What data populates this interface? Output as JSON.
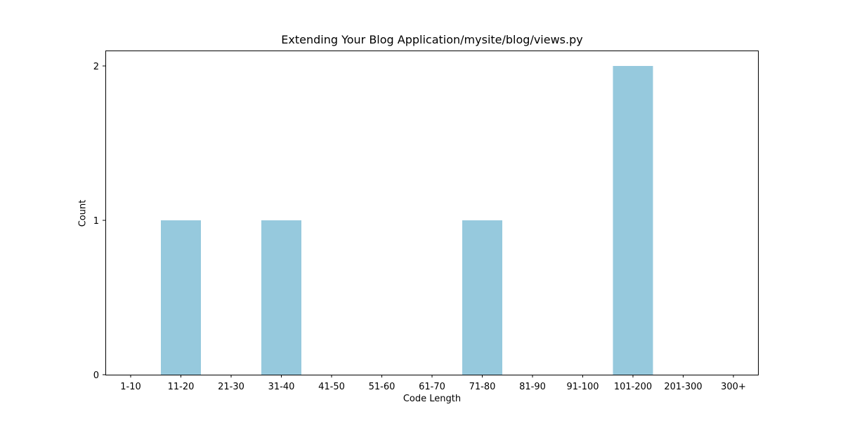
{
  "chart_data": {
    "type": "bar",
    "title": "Extending Your Blog Application/mysite/blog/views.py",
    "xlabel": "Code Length",
    "ylabel": "Count",
    "categories": [
      "1-10",
      "11-20",
      "21-30",
      "31-40",
      "41-50",
      "51-60",
      "61-70",
      "71-80",
      "81-90",
      "91-100",
      "101-200",
      "201-300",
      "300+"
    ],
    "values": [
      0,
      1,
      0,
      1,
      0,
      0,
      0,
      1,
      0,
      0,
      2,
      0,
      0
    ],
    "yticks": [
      0,
      1,
      2
    ],
    "ylim": [
      0,
      2.1
    ],
    "grid": false,
    "bar_color": "#96c9dd"
  }
}
